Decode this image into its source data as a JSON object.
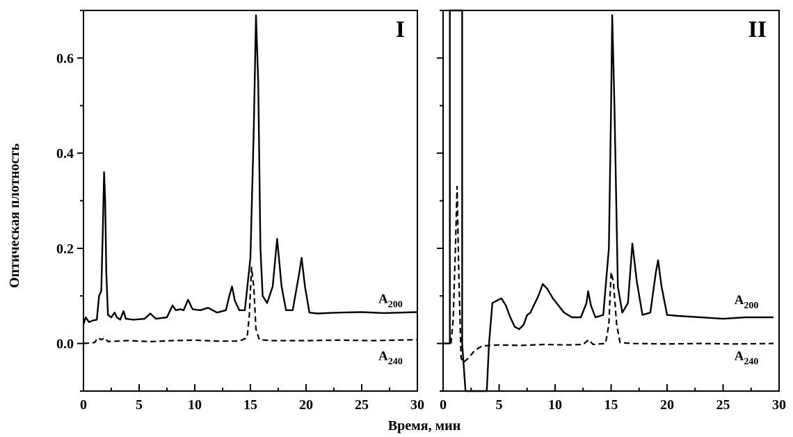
{
  "figure": {
    "ylabel": "Оптическая плотность",
    "xlabel": "Время, мин"
  },
  "chart_data": [
    {
      "type": "line",
      "panel_label": "I",
      "xlim": [
        0,
        30
      ],
      "ylim": [
        -0.1,
        0.7
      ],
      "x_ticks": [
        0,
        5,
        10,
        15,
        20,
        25,
        30
      ],
      "y_ticks": [
        0.0,
        0.2,
        0.4,
        0.6
      ],
      "y_tick_labels": [
        "0.0",
        "0.2",
        "0.4",
        "0.6"
      ],
      "y_minor_ticks": [
        -0.1,
        0.1,
        0.3,
        0.5,
        0.7
      ],
      "grid": false,
      "series": [
        {
          "name": "A200",
          "label_main": "A",
          "label_sub": "200",
          "style": "solid",
          "label_at": [
            26.5,
            0.085
          ],
          "points": [
            [
              0.0,
              0.04
            ],
            [
              0.2,
              0.055
            ],
            [
              0.5,
              0.045
            ],
            [
              0.8,
              0.048
            ],
            [
              1.2,
              0.05
            ],
            [
              1.4,
              0.1
            ],
            [
              1.6,
              0.11
            ],
            [
              1.75,
              0.25
            ],
            [
              1.85,
              0.36
            ],
            [
              1.95,
              0.3
            ],
            [
              2.05,
              0.15
            ],
            [
              2.2,
              0.06
            ],
            [
              2.5,
              0.055
            ],
            [
              2.8,
              0.065
            ],
            [
              3.0,
              0.055
            ],
            [
              3.3,
              0.05
            ],
            [
              3.6,
              0.068
            ],
            [
              3.8,
              0.052
            ],
            [
              4.5,
              0.05
            ],
            [
              5.5,
              0.052
            ],
            [
              6.0,
              0.063
            ],
            [
              6.5,
              0.052
            ],
            [
              7.5,
              0.055
            ],
            [
              8.0,
              0.08
            ],
            [
              8.3,
              0.07
            ],
            [
              8.7,
              0.072
            ],
            [
              9.0,
              0.07
            ],
            [
              9.4,
              0.092
            ],
            [
              9.8,
              0.072
            ],
            [
              10.5,
              0.07
            ],
            [
              11.2,
              0.075
            ],
            [
              12.0,
              0.065
            ],
            [
              12.8,
              0.07
            ],
            [
              13.1,
              0.1
            ],
            [
              13.35,
              0.12
            ],
            [
              13.6,
              0.09
            ],
            [
              14.0,
              0.07
            ],
            [
              14.5,
              0.07
            ],
            [
              15.0,
              0.18
            ],
            [
              15.3,
              0.45
            ],
            [
              15.5,
              0.69
            ],
            [
              15.7,
              0.55
            ],
            [
              15.9,
              0.2
            ],
            [
              16.1,
              0.1
            ],
            [
              16.5,
              0.085
            ],
            [
              17.0,
              0.12
            ],
            [
              17.4,
              0.22
            ],
            [
              17.8,
              0.12
            ],
            [
              18.2,
              0.07
            ],
            [
              18.8,
              0.07
            ],
            [
              19.4,
              0.15
            ],
            [
              19.6,
              0.18
            ],
            [
              19.9,
              0.12
            ],
            [
              20.3,
              0.065
            ],
            [
              21.0,
              0.063
            ],
            [
              23.0,
              0.065
            ],
            [
              25.0,
              0.066
            ],
            [
              27.0,
              0.064
            ],
            [
              30.0,
              0.066
            ]
          ]
        },
        {
          "name": "A240",
          "label_main": "A",
          "label_sub": "240",
          "style": "dashed",
          "label_at": [
            26.5,
            -0.035
          ],
          "points": [
            [
              0.0,
              0.0
            ],
            [
              1.0,
              0.002
            ],
            [
              1.3,
              0.012
            ],
            [
              1.6,
              0.008
            ],
            [
              1.9,
              0.012
            ],
            [
              2.2,
              0.004
            ],
            [
              4.0,
              0.006
            ],
            [
              6.0,
              0.004
            ],
            [
              8.0,
              0.006
            ],
            [
              10.0,
              0.007
            ],
            [
              12.0,
              0.005
            ],
            [
              14.0,
              0.005
            ],
            [
              14.7,
              0.012
            ],
            [
              14.9,
              0.06
            ],
            [
              15.1,
              0.16
            ],
            [
              15.3,
              0.12
            ],
            [
              15.5,
              0.03
            ],
            [
              15.8,
              0.008
            ],
            [
              17.0,
              0.006
            ],
            [
              20.0,
              0.006
            ],
            [
              23.0,
              0.007
            ],
            [
              26.0,
              0.006
            ],
            [
              30.0,
              0.008
            ]
          ]
        }
      ]
    },
    {
      "type": "line",
      "panel_label": "II",
      "xlim": [
        0,
        30
      ],
      "ylim": [
        -0.1,
        0.7
      ],
      "x_ticks": [
        0,
        5,
        10,
        15,
        20,
        25,
        30
      ],
      "y_ticks": [
        0.0,
        0.2,
        0.4,
        0.6
      ],
      "y_tick_labels": [],
      "y_minor_ticks": [
        -0.1,
        0.1,
        0.3,
        0.5,
        0.7
      ],
      "grid": false,
      "series": [
        {
          "name": "A200",
          "label_main": "A",
          "label_sub": "200",
          "style": "solid",
          "label_at": [
            26.0,
            0.083
          ],
          "points": [
            [
              0.0,
              0.0
            ],
            [
              0.6,
              0.0
            ],
            [
              0.6,
              0.7
            ],
            [
              1.7,
              0.7
            ],
            [
              1.7,
              0.0
            ],
            [
              2.0,
              -0.1
            ],
            [
              3.9,
              -0.1
            ],
            [
              4.1,
              0.0
            ],
            [
              4.4,
              0.085
            ],
            [
              4.8,
              0.09
            ],
            [
              5.2,
              0.095
            ],
            [
              5.6,
              0.08
            ],
            [
              6.0,
              0.055
            ],
            [
              6.4,
              0.035
            ],
            [
              6.8,
              0.03
            ],
            [
              7.2,
              0.04
            ],
            [
              7.5,
              0.06
            ],
            [
              7.8,
              0.065
            ],
            [
              8.1,
              0.08
            ],
            [
              8.5,
              0.1
            ],
            [
              8.9,
              0.125
            ],
            [
              9.3,
              0.115
            ],
            [
              9.8,
              0.095
            ],
            [
              10.3,
              0.08
            ],
            [
              10.8,
              0.065
            ],
            [
              11.5,
              0.055
            ],
            [
              12.3,
              0.055
            ],
            [
              12.8,
              0.085
            ],
            [
              12.95,
              0.11
            ],
            [
              13.2,
              0.08
            ],
            [
              13.6,
              0.055
            ],
            [
              14.3,
              0.06
            ],
            [
              14.8,
              0.2
            ],
            [
              15.0,
              0.5
            ],
            [
              15.1,
              0.69
            ],
            [
              15.3,
              0.5
            ],
            [
              15.6,
              0.12
            ],
            [
              16.0,
              0.065
            ],
            [
              16.5,
              0.085
            ],
            [
              16.9,
              0.21
            ],
            [
              17.3,
              0.13
            ],
            [
              17.8,
              0.06
            ],
            [
              18.5,
              0.065
            ],
            [
              19.0,
              0.15
            ],
            [
              19.2,
              0.175
            ],
            [
              19.5,
              0.12
            ],
            [
              20.0,
              0.06
            ],
            [
              21.0,
              0.058
            ],
            [
              23.0,
              0.055
            ],
            [
              25.0,
              0.052
            ],
            [
              27.0,
              0.055
            ],
            [
              29.5,
              0.055
            ]
          ]
        },
        {
          "name": "A240",
          "label_main": "A",
          "label_sub": "240",
          "style": "dashed",
          "label_at": [
            26.0,
            -0.035
          ],
          "points": [
            [
              0.7,
              0.0
            ],
            [
              0.9,
              0.05
            ],
            [
              1.1,
              0.2
            ],
            [
              1.25,
              0.33
            ],
            [
              1.4,
              0.15
            ],
            [
              1.6,
              -0.03
            ],
            [
              1.8,
              -0.04
            ],
            [
              2.3,
              -0.03
            ],
            [
              2.8,
              -0.015
            ],
            [
              3.5,
              -0.005
            ],
            [
              5.0,
              -0.003
            ],
            [
              7.0,
              -0.004
            ],
            [
              9.0,
              -0.002
            ],
            [
              11.0,
              -0.003
            ],
            [
              12.5,
              -0.002
            ],
            [
              13.0,
              0.008
            ],
            [
              13.4,
              -0.002
            ],
            [
              14.5,
              0.0
            ],
            [
              14.8,
              0.04
            ],
            [
              15.0,
              0.15
            ],
            [
              15.2,
              0.13
            ],
            [
              15.5,
              0.04
            ],
            [
              15.8,
              0.002
            ],
            [
              17.0,
              0.0
            ],
            [
              20.0,
              -0.001
            ],
            [
              23.0,
              0.0
            ],
            [
              26.0,
              -0.001
            ],
            [
              29.5,
              0.0
            ]
          ]
        }
      ]
    }
  ]
}
